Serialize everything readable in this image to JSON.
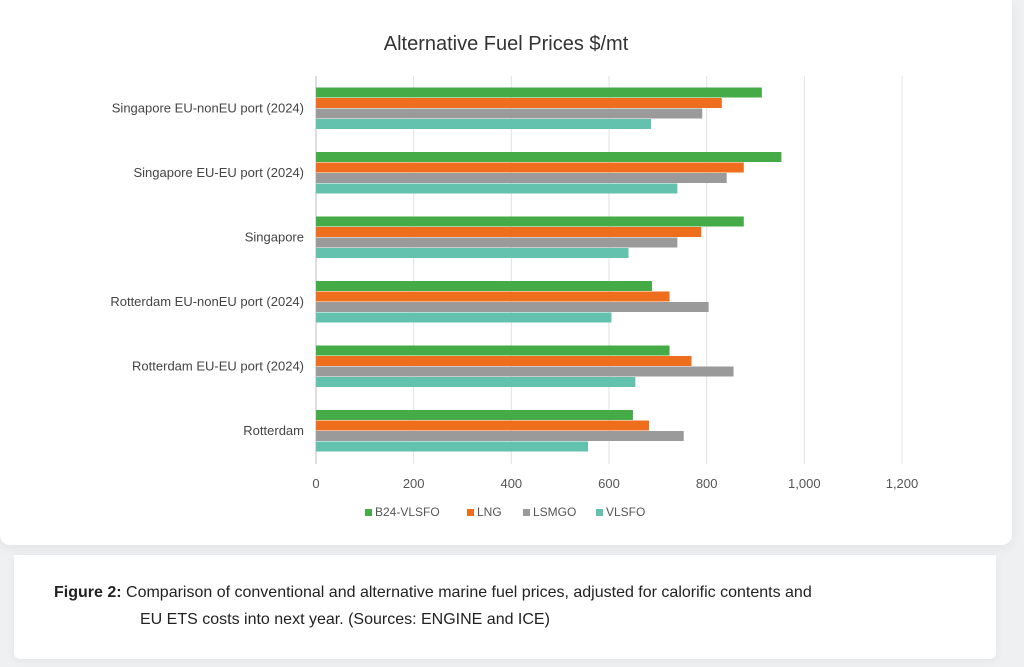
{
  "chart_data": {
    "type": "bar",
    "orientation": "horizontal",
    "title": "Alternative Fuel Prices $/mt",
    "categories": [
      "Singapore EU-nonEU port (2024)",
      "Singapore EU-EU port (2024)",
      "Singapore",
      "Rotterdam EU-nonEU port (2024)",
      "Rotterdam EU-EU port (2024)",
      "Rotterdam"
    ],
    "series": [
      {
        "name": "B24-VLSFO",
        "color": "#45ab47",
        "values": [
          913,
          953,
          876,
          688,
          724,
          649
        ]
      },
      {
        "name": "LNG",
        "color": "#ee6e1e",
        "values": [
          831,
          876,
          789,
          724,
          769,
          682
        ]
      },
      {
        "name": "LSMGO",
        "color": "#9a9a9a",
        "values": [
          791,
          841,
          740,
          804,
          855,
          753
        ]
      },
      {
        "name": "VLSFO",
        "color": "#63c2ae",
        "values": [
          686,
          740,
          640,
          605,
          654,
          557
        ]
      }
    ],
    "xlim": [
      0,
      1200
    ],
    "xticks": [
      0,
      200,
      400,
      600,
      800,
      1000,
      1200
    ],
    "xtick_labels": [
      "0",
      "200",
      "400",
      "600",
      "800",
      "1,000",
      "1,200"
    ],
    "grid": true,
    "legend_position": "bottom"
  },
  "caption": {
    "label": "Figure 2:",
    "line1": "Comparison of conventional and alternative marine fuel prices, adjusted for calorific contents and",
    "line2": "EU ETS costs into next year. (Sources: ENGINE and ICE)"
  }
}
